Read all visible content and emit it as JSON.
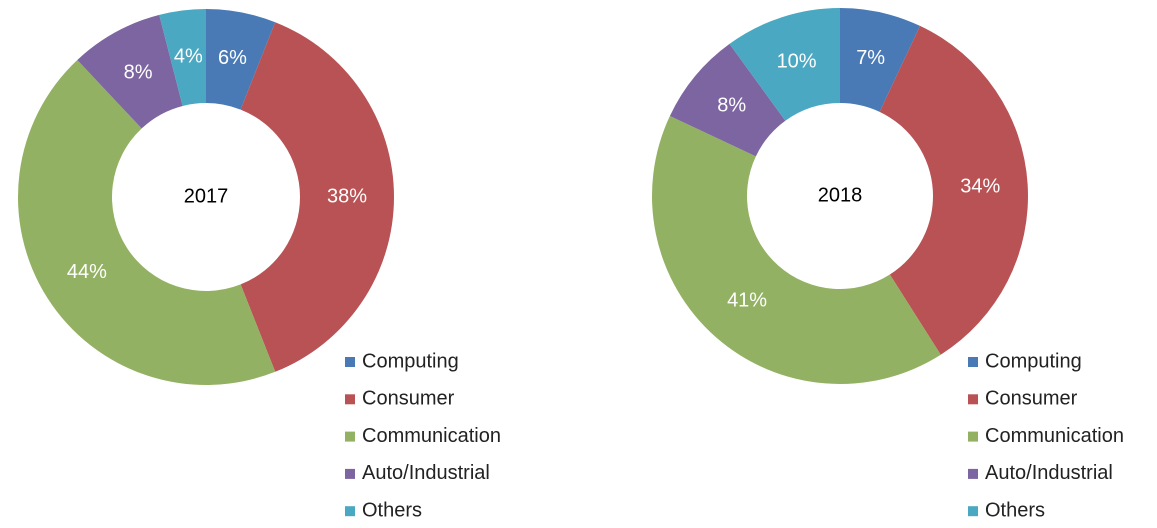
{
  "chart_data": [
    {
      "type": "donut",
      "title": "2017",
      "categories": [
        "Computing",
        "Consumer",
        "Communication",
        "Auto/Industrial",
        "Others"
      ],
      "values": [
        6,
        38,
        44,
        8,
        4
      ],
      "value_labels": [
        "6%",
        "38%",
        "44%",
        "8%",
        "4%"
      ],
      "colors": [
        "#4a7ab5",
        "#b95254",
        "#93b162",
        "#7c65a0",
        "#4aa8c2"
      ]
    },
    {
      "type": "donut",
      "title": "2018",
      "categories": [
        "Computing",
        "Consumer",
        "Communication",
        "Auto/Industrial",
        "Others"
      ],
      "values": [
        7,
        34,
        41,
        8,
        10
      ],
      "value_labels": [
        "7%",
        "34%",
        "41%",
        "8%",
        "10%"
      ],
      "colors": [
        "#4a7ab5",
        "#b95254",
        "#93b162",
        "#7c65a0",
        "#4aa8c2"
      ]
    }
  ]
}
